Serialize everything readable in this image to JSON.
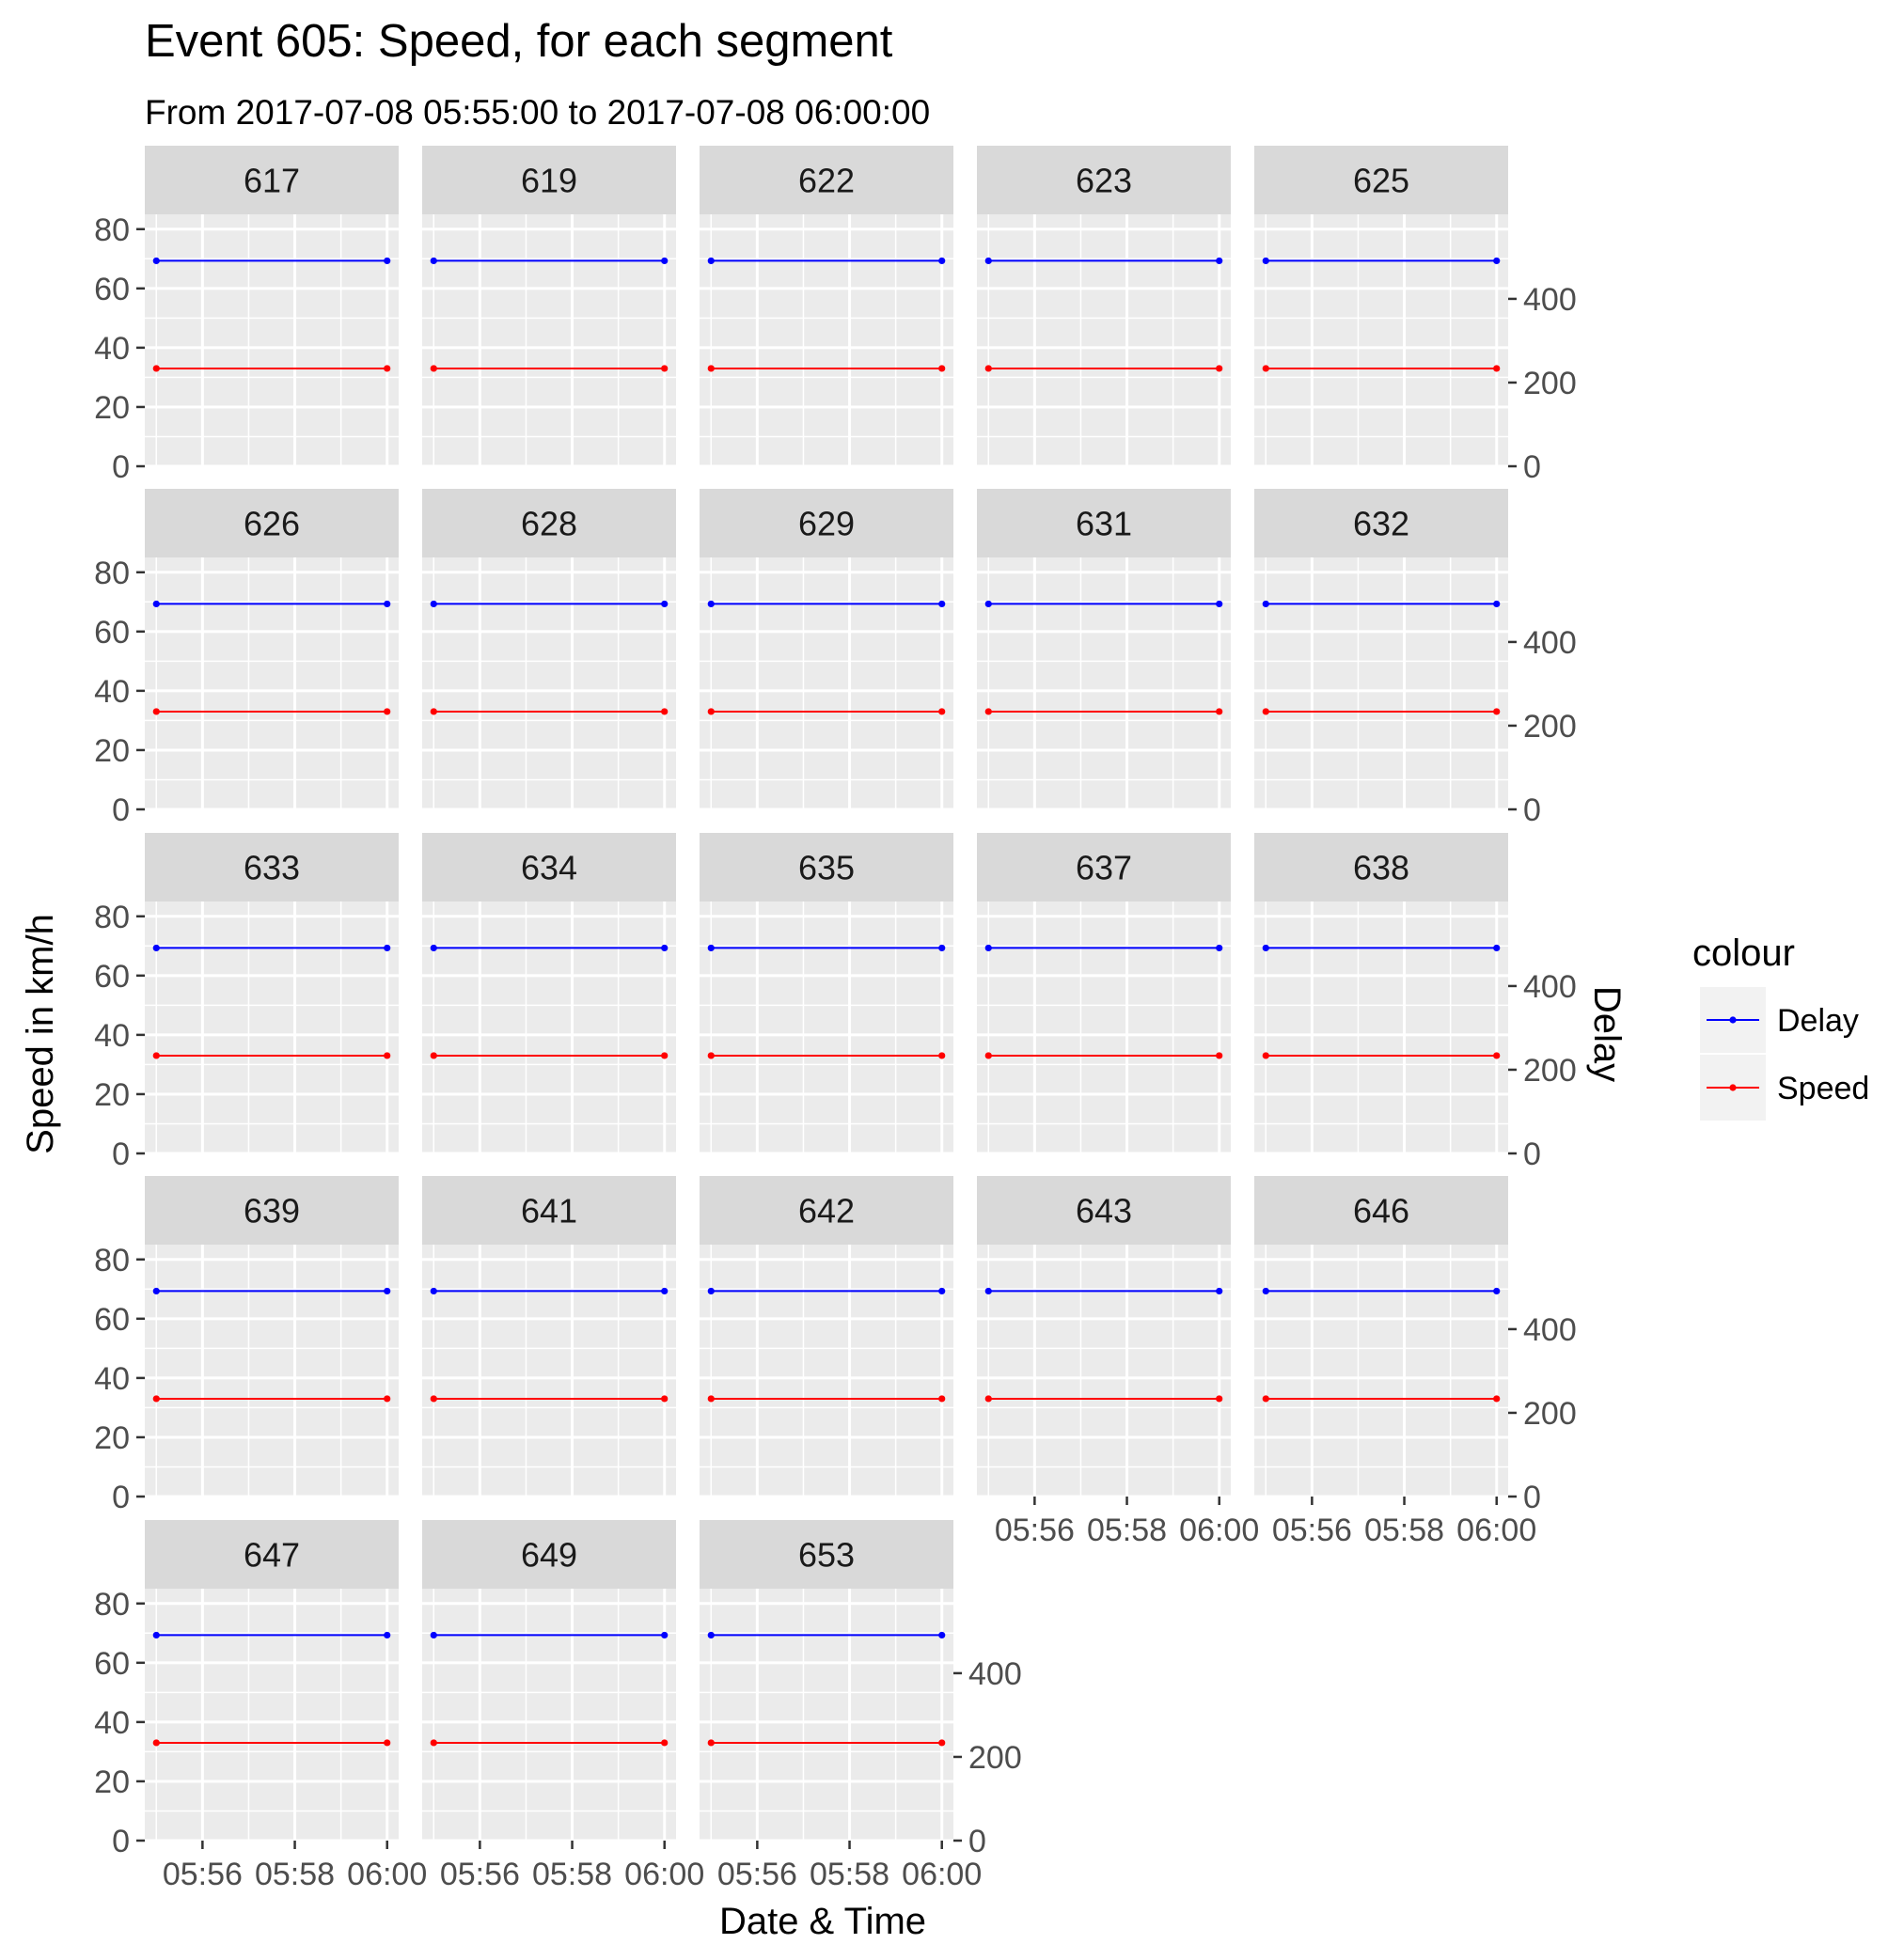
{
  "title": "Event 605: Speed, for each segment",
  "subtitle": "From 2017-07-08 05:55:00 to 2017-07-08 06:00:00",
  "chart_data": {
    "type": "line",
    "facet_by": "segment",
    "facet_layout": "5 columns, 5 rows",
    "panels": [
      "617",
      "619",
      "622",
      "623",
      "625",
      "626",
      "628",
      "629",
      "631",
      "632",
      "633",
      "634",
      "635",
      "637",
      "638",
      "639",
      "641",
      "642",
      "643",
      "646",
      "647",
      "649",
      "653"
    ],
    "x": [
      "2017-07-08 05:55:00",
      "2017-07-08 06:00:00"
    ],
    "xlabel": "Date & Time",
    "x_tick_labels": [
      "05:56",
      "05:58",
      "06:00"
    ],
    "ylabel": "Speed in km/h",
    "y_ticks": [
      0,
      20,
      40,
      60,
      80
    ],
    "ylim": [
      0,
      85
    ],
    "y2label": "Delay",
    "y2_ticks": [
      0,
      200,
      400
    ],
    "y2lim": [
      0,
      602
    ],
    "series": [
      {
        "name": "Delay",
        "axis": "right",
        "values": [
          491,
          491
        ],
        "color": "#0000ff"
      },
      {
        "name": "Speed",
        "axis": "left",
        "values": [
          33,
          33
        ],
        "color": "#ff0000"
      }
    ],
    "legend": {
      "title": "colour",
      "entries": [
        "Delay",
        "Speed"
      ],
      "position": "right"
    },
    "grid": true,
    "panel_background": "#ebebeb",
    "strip_background": "#d9d9d9"
  }
}
